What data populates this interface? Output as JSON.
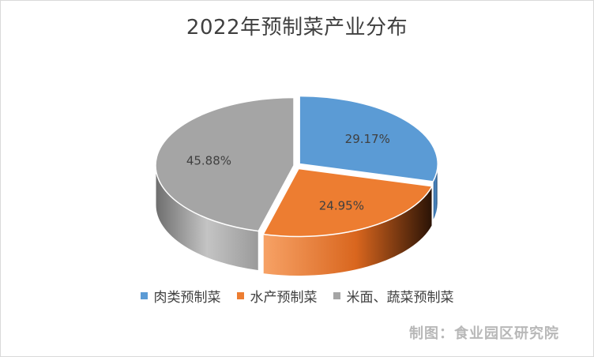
{
  "chart_data": {
    "type": "pie",
    "style": "3d-exploded",
    "title": "2022年预制菜产业分布",
    "categories": [
      "肉类预制菜",
      "水产预制菜",
      "米面、蔬菜预制菜"
    ],
    "values": [
      29.17,
      24.95,
      45.88
    ],
    "data_labels": [
      "29.17%",
      "24.95%",
      "45.88%"
    ],
    "colors": [
      "#5b9bd5",
      "#ed7d31",
      "#a5a5a5"
    ],
    "legend_position": "bottom"
  },
  "credit": "制图：食业园区研究院"
}
